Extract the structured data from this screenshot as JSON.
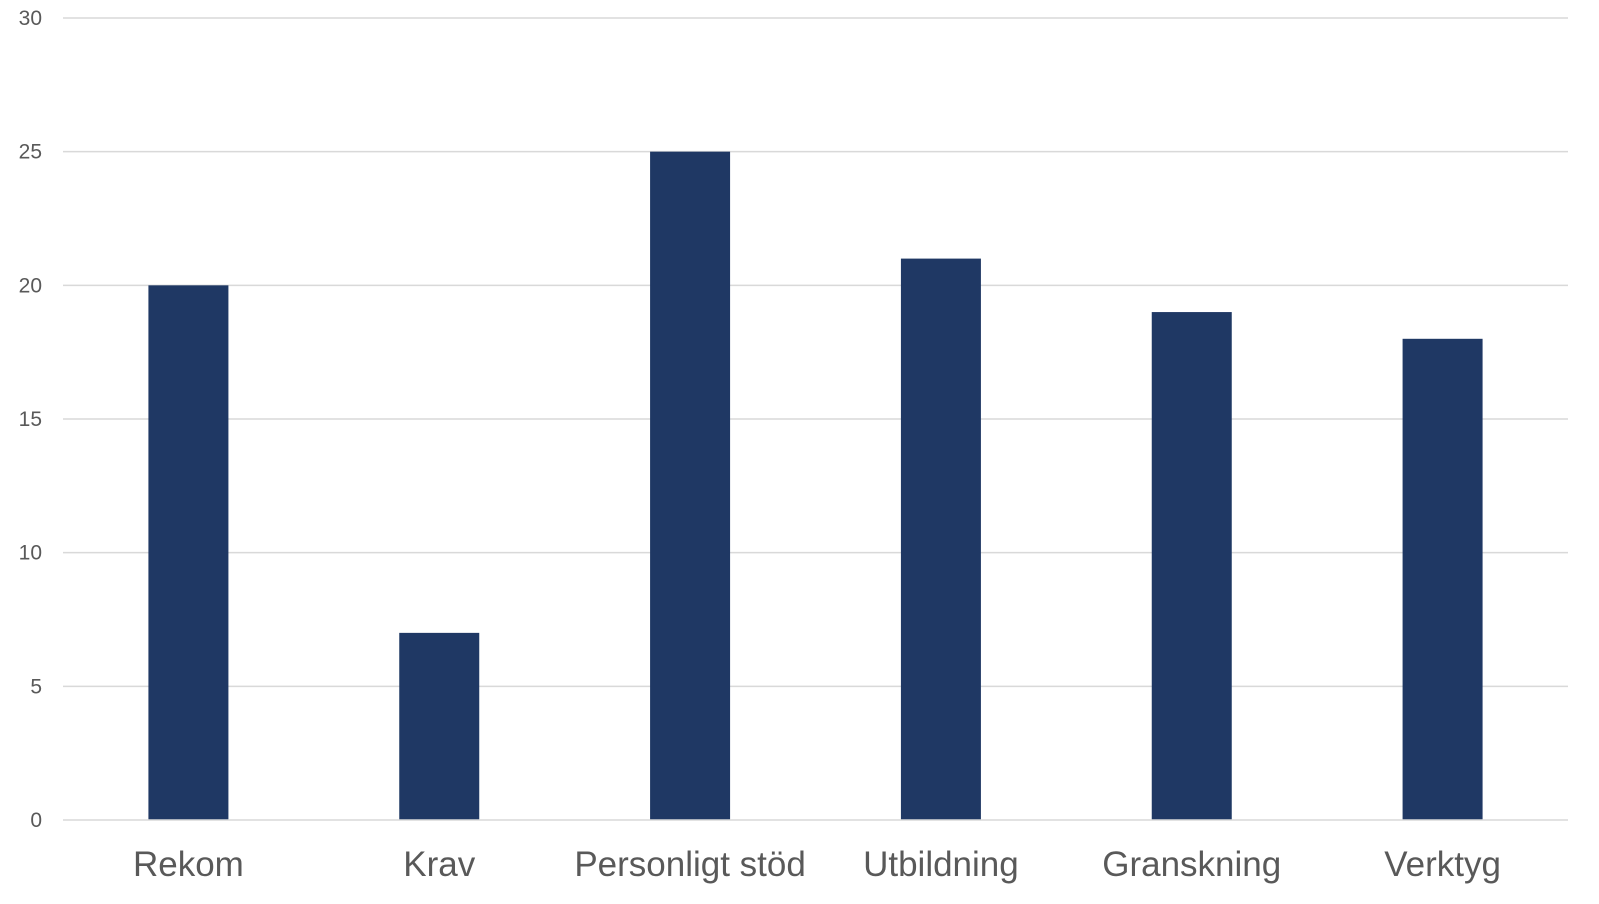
{
  "chart_data": {
    "type": "bar",
    "title": "",
    "xlabel": "",
    "ylabel": "",
    "categories": [
      "Rekom",
      "Krav",
      "Personligt stöd",
      "Utbildning",
      "Granskning",
      "Verktyg"
    ],
    "values": [
      20,
      7,
      25,
      21,
      19,
      18
    ],
    "ylim": [
      0,
      30
    ],
    "yticks": [
      0,
      5,
      10,
      15,
      20,
      25,
      30
    ],
    "ytick_labels": [
      "0",
      "5",
      "10",
      "15",
      "20",
      "25",
      "30"
    ],
    "grid": true,
    "legend": "none",
    "bar_color": "#1f3864",
    "grid_color": "#d9d9d9",
    "text_color": "#595959"
  }
}
